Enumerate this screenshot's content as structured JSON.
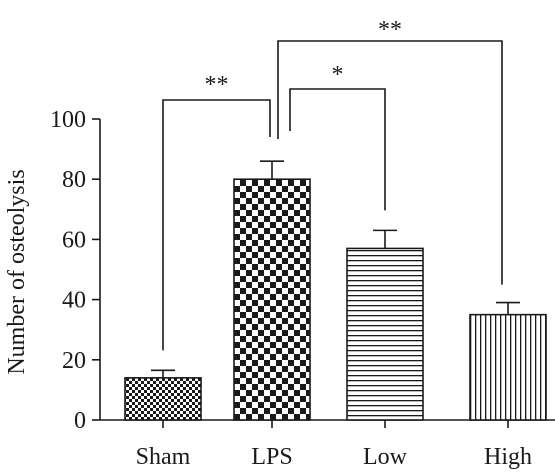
{
  "chart_data": {
    "type": "bar",
    "title": "",
    "xlabel": "",
    "ylabel": "Number of osteolysis",
    "categories": [
      "Sham",
      "LPS",
      "Low",
      "High"
    ],
    "values": [
      14,
      80,
      57,
      35
    ],
    "errors": [
      2.5,
      6,
      6,
      4
    ],
    "patterns": [
      "fine-checker",
      "coarse-checker",
      "horizontal-stripes",
      "vertical-stripes"
    ],
    "ylim": [
      0,
      100
    ],
    "yticks": [
      0,
      20,
      40,
      60,
      80,
      100
    ],
    "grid": false,
    "significance": [
      {
        "from": "Sham",
        "to": "LPS",
        "label": "**"
      },
      {
        "from": "LPS",
        "to": "Low",
        "label": "*"
      },
      {
        "from": "LPS",
        "to": "High",
        "label": "**"
      }
    ],
    "colors": {
      "ink": "#1a1a1a",
      "background": "#ffffff"
    }
  }
}
